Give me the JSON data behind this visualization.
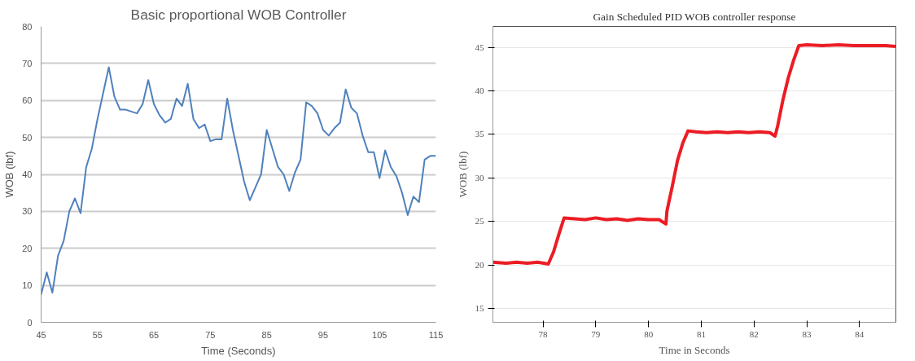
{
  "chart_data": [
    {
      "type": "line",
      "title": "Basic proportional WOB Controller",
      "xlabel": "Time (Seconds)",
      "ylabel": "WOB (lbf)",
      "xlim": [
        45,
        115
      ],
      "ylim": [
        0,
        80
      ],
      "xticks": [
        45,
        55,
        65,
        75,
        85,
        95,
        105,
        115
      ],
      "yticks": [
        0,
        10,
        20,
        30,
        40,
        50,
        60,
        70,
        80
      ],
      "grid": "y",
      "series": [
        {
          "color": "#4f81bd",
          "x": [
            45,
            46,
            47,
            48,
            49,
            50,
            51,
            52,
            53,
            54,
            55,
            56,
            57,
            58,
            59,
            60,
            62,
            63,
            64,
            65,
            66,
            67,
            68,
            69,
            70,
            71,
            72,
            73,
            74,
            75,
            76,
            77,
            78,
            79,
            80,
            81,
            82,
            83,
            84,
            85,
            86,
            87,
            88,
            89,
            90,
            91,
            92,
            93,
            94,
            95,
            96,
            97,
            98,
            99,
            100,
            101,
            102,
            103,
            104,
            105,
            106,
            107,
            108,
            109,
            110,
            111,
            112,
            113,
            114,
            115
          ],
          "values": [
            7.5,
            13.5,
            8,
            18,
            22,
            30,
            33.5,
            29.5,
            42,
            47,
            55,
            62,
            69,
            61,
            57.5,
            57.5,
            56.5,
            59,
            65.5,
            59,
            56,
            54,
            55,
            60.5,
            58.5,
            64.5,
            55,
            52.5,
            53.5,
            49,
            49.5,
            49.5,
            60.5,
            52,
            45,
            38,
            33,
            36.5,
            40,
            52,
            47,
            42,
            40,
            35.5,
            40.5,
            44,
            59.5,
            58.5,
            56.5,
            52,
            50.5,
            52.5,
            54,
            63,
            58,
            56.5,
            50.5,
            46,
            46,
            39,
            46.5,
            42,
            39.5,
            35,
            29,
            34,
            32.5,
            44,
            45,
            45
          ]
        }
      ]
    },
    {
      "type": "line",
      "title": "Gain Scheduled PID WOB controller response",
      "xlabel": "Time in Seconds",
      "ylabel": "WOB (lbf)",
      "xlim": [
        77.05,
        84.69
      ],
      "ylim": [
        13.4,
        47.4
      ],
      "xticks": [
        78,
        79,
        80,
        81,
        82,
        83,
        84
      ],
      "yticks": [
        15,
        20,
        25,
        30,
        35,
        40,
        45
      ],
      "grid": "y",
      "series": [
        {
          "color": "#ec1c24",
          "x": [
            77.05,
            77.3,
            77.5,
            77.7,
            77.9,
            78.1,
            78.2,
            78.3,
            78.4,
            78.6,
            78.8,
            79.0,
            79.2,
            79.4,
            79.6,
            79.8,
            80.0,
            80.2,
            80.33,
            80.35,
            80.45,
            80.55,
            80.65,
            80.75,
            80.9,
            81.1,
            81.3,
            81.5,
            81.7,
            81.9,
            82.1,
            82.3,
            82.4,
            82.45,
            82.55,
            82.65,
            82.75,
            82.85,
            83.0,
            83.3,
            83.6,
            83.9,
            84.2,
            84.5,
            84.69
          ],
          "values": [
            20.3,
            20.2,
            20.3,
            20.2,
            20.3,
            20.1,
            21.5,
            23.5,
            25.4,
            25.3,
            25.2,
            25.4,
            25.2,
            25.3,
            25.1,
            25.3,
            25.2,
            25.2,
            24.7,
            26.2,
            29,
            32,
            34,
            35.4,
            35.3,
            35.2,
            35.3,
            35.2,
            35.3,
            35.2,
            35.3,
            35.2,
            34.8,
            36,
            39,
            41.5,
            43.5,
            45.2,
            45.3,
            45.2,
            45.3,
            45.2,
            45.2,
            45.2,
            45.1
          ]
        }
      ]
    }
  ]
}
